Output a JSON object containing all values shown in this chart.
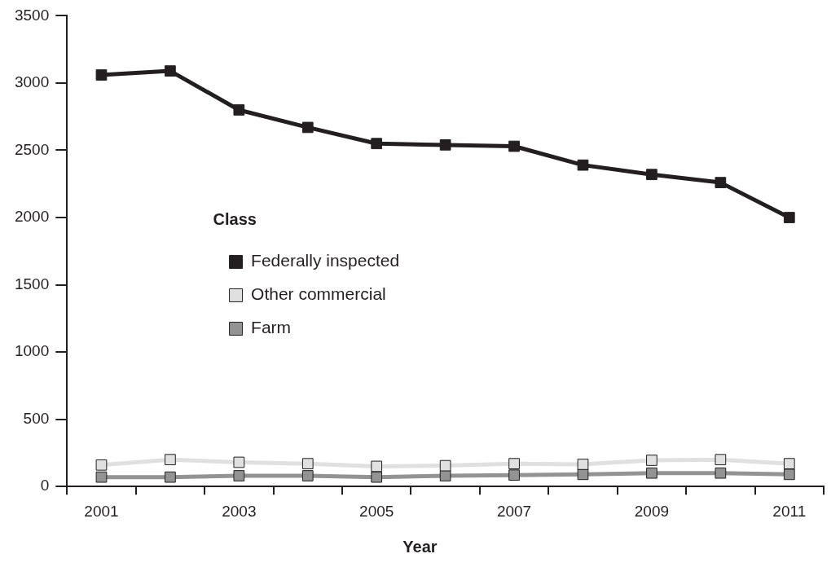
{
  "chart_data": {
    "type": "line",
    "xlabel": "Year",
    "legend_title": "Class",
    "legend": "left",
    "grid": false,
    "marker": "square",
    "line_style": "solid",
    "categories": [
      "2001",
      null,
      "2003",
      null,
      "2005",
      null,
      "2007",
      null,
      "2009",
      null,
      "2011"
    ],
    "ylim": [
      0,
      3500
    ],
    "yticks": [
      0,
      500,
      1000,
      1500,
      2000,
      2500,
      3000,
      3500
    ],
    "series": [
      {
        "name": "Federally inspected",
        "color": "#231f20",
        "values": [
          3060,
          3090,
          2800,
          2670,
          2550,
          2540,
          2530,
          2390,
          2320,
          2260,
          2000
        ]
      },
      {
        "name": "Other commercial",
        "color": "#e0e0e0",
        "values": [
          160,
          200,
          180,
          170,
          150,
          155,
          170,
          165,
          195,
          200,
          170
        ]
      },
      {
        "name": "Farm",
        "color": "#939393",
        "values": [
          70,
          70,
          80,
          80,
          70,
          80,
          85,
          90,
          100,
          100,
          90
        ]
      }
    ]
  }
}
